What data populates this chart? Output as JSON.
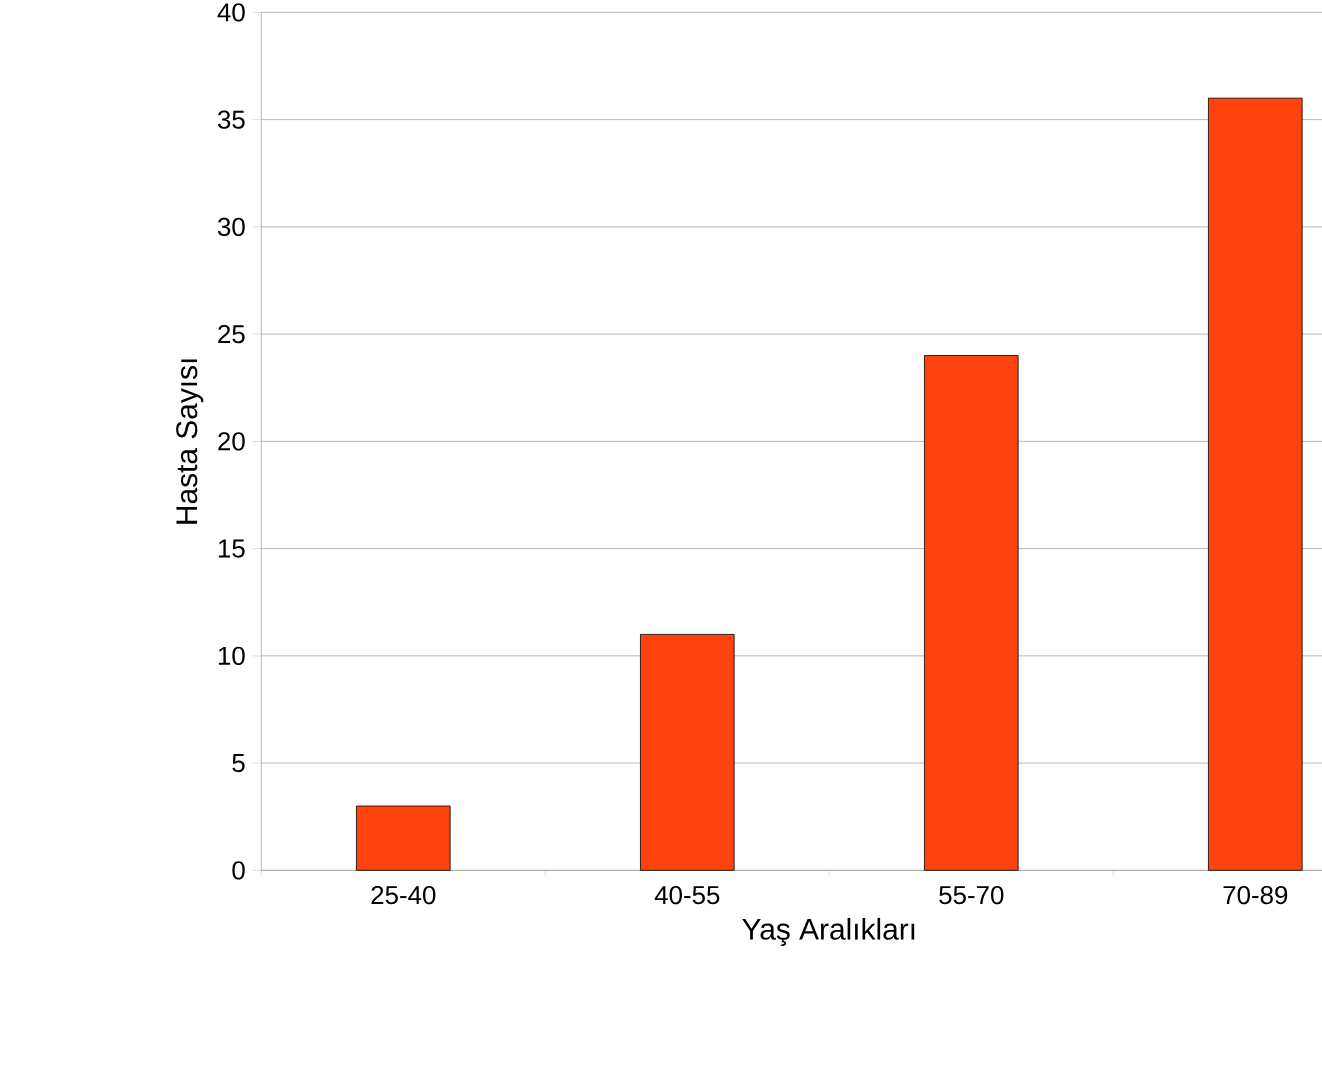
{
  "chart_data": {
    "type": "bar",
    "xlabel": "Yaş Aralıkları",
    "ylabel": "Hasta Sayısı",
    "categories": [
      "25-40",
      "40-55",
      "55-70",
      "70-89"
    ],
    "values": [
      3,
      11,
      24,
      36
    ],
    "color": "#ff420e",
    "ylim": [
      0,
      40
    ],
    "yticks": [
      0,
      5,
      10,
      15,
      20,
      25,
      30,
      35,
      40
    ],
    "grid": "y"
  }
}
